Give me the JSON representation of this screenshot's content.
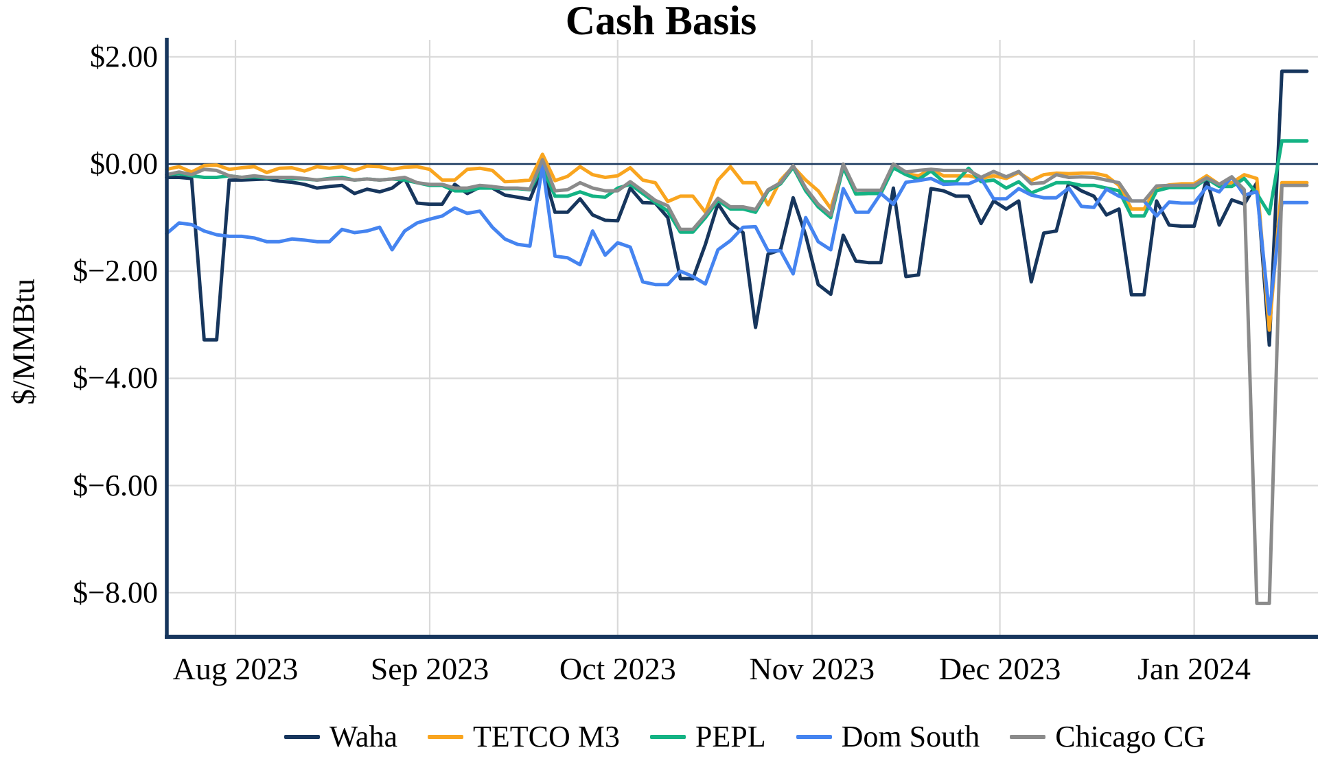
{
  "chart_data": {
    "type": "line",
    "title": "Cash Basis",
    "ylabel": "$/MMBtu",
    "grid": true,
    "legend_position": "bottom",
    "axis_color": "#17365d",
    "grid_color": "#d9d9d9",
    "background": "#ffffff",
    "zero_line": true,
    "ylim": [
      -8.82,
      2.32
    ],
    "yticks": [
      {
        "label": "$2.00",
        "value": 2
      },
      {
        "label": "$0.00",
        "value": 0
      },
      {
        "label": "$−2.00",
        "value": -2
      },
      {
        "label": "$−4.00",
        "value": -4
      },
      {
        "label": "$−6.00",
        "value": -6
      },
      {
        "label": "$−8.00",
        "value": -8
      }
    ],
    "xticks": [
      {
        "label": "Aug 2023",
        "day": 11
      },
      {
        "label": "Sep 2023",
        "day": 42
      },
      {
        "label": "Oct 2023",
        "day": 72
      },
      {
        "label": "Nov 2023",
        "day": 103
      },
      {
        "label": "Dec 2023",
        "day": 133
      },
      {
        "label": "Jan 2024",
        "day": 164
      }
    ],
    "x_dates": [
      "Jul 21",
      "Jul 23",
      "Jul 25",
      "Jul 27",
      "Jul 29",
      "Jul 31",
      "Aug 2",
      "Aug 4",
      "Aug 6",
      "Aug 8",
      "Aug 10",
      "Aug 12",
      "Aug 14",
      "Aug 16",
      "Aug 18",
      "Aug 20",
      "Aug 22",
      "Aug 24",
      "Aug 26",
      "Aug 28",
      "Aug 30",
      "Sep 1",
      "Sep 3",
      "Sep 5",
      "Sep 7",
      "Sep 9",
      "Sep 11",
      "Sep 13",
      "Sep 15",
      "Sep 17",
      "Sep 19",
      "Sep 21",
      "Sep 23",
      "Sep 25",
      "Sep 27",
      "Sep 29",
      "Oct 1",
      "Oct 3",
      "Oct 5",
      "Oct 7",
      "Oct 9",
      "Oct 11",
      "Oct 13",
      "Oct 15",
      "Oct 17",
      "Oct 19",
      "Oct 21",
      "Oct 23",
      "Oct 25",
      "Oct 27",
      "Oct 29",
      "Oct 31",
      "Nov 2",
      "Nov 4",
      "Nov 6",
      "Nov 8",
      "Nov 10",
      "Nov 12",
      "Nov 14",
      "Nov 16",
      "Nov 18",
      "Nov 20",
      "Nov 22",
      "Nov 24",
      "Nov 26",
      "Nov 28",
      "Nov 30",
      "Dec 2",
      "Dec 4",
      "Dec 6",
      "Dec 8",
      "Dec 10",
      "Dec 12",
      "Dec 14",
      "Dec 16",
      "Dec 18",
      "Dec 20",
      "Dec 22",
      "Dec 24",
      "Dec 26",
      "Dec 28",
      "Dec 30",
      "Jan 1",
      "Jan 3",
      "Jan 5",
      "Jan 7",
      "Jan 9",
      "Jan 11",
      "Jan 13",
      "Jan 15",
      "Jan 17",
      "Jan 19"
    ],
    "series": [
      {
        "name": "Waha",
        "color": "#17365d",
        "values": [
          -0.25,
          -0.25,
          -0.27,
          -3.28,
          -3.28,
          -0.3,
          -0.3,
          -0.29,
          -0.28,
          -0.32,
          -0.34,
          -0.38,
          -0.45,
          -0.42,
          -0.4,
          -0.55,
          -0.47,
          -0.52,
          -0.45,
          -0.27,
          -0.73,
          -0.75,
          -0.75,
          -0.38,
          -0.55,
          -0.43,
          -0.45,
          -0.58,
          -0.62,
          -0.66,
          -0.08,
          -0.9,
          -0.9,
          -0.65,
          -0.95,
          -1.05,
          -1.06,
          -0.45,
          -0.72,
          -0.73,
          -1.0,
          -2.14,
          -2.14,
          -1.5,
          -0.74,
          -1.1,
          -1.28,
          -3.05,
          -1.68,
          -1.6,
          -0.63,
          -1.33,
          -2.25,
          -2.43,
          -1.33,
          -1.81,
          -1.84,
          -1.84,
          -0.45,
          -2.1,
          -2.07,
          -0.46,
          -0.5,
          -0.6,
          -0.6,
          -1.11,
          -0.69,
          -0.84,
          -0.69,
          -2.2,
          -1.29,
          -1.25,
          -0.35,
          -0.5,
          -0.6,
          -0.95,
          -0.84,
          -2.44,
          -2.44,
          -0.69,
          -1.14,
          -1.16,
          -1.16,
          -0.27,
          -1.14,
          -0.67,
          -0.75,
          -0.35,
          -3.38,
          1.73,
          1.73,
          1.73
        ]
      },
      {
        "name": "TETCO M3",
        "color": "#f9a51f",
        "values": [
          -0.1,
          -0.05,
          -0.15,
          -0.03,
          -0.02,
          -0.1,
          -0.07,
          -0.05,
          -0.16,
          -0.08,
          -0.07,
          -0.13,
          -0.05,
          -0.08,
          -0.05,
          -0.12,
          -0.04,
          -0.05,
          -0.1,
          -0.06,
          -0.05,
          -0.1,
          -0.3,
          -0.3,
          -0.1,
          -0.08,
          -0.12,
          -0.33,
          -0.32,
          -0.3,
          0.18,
          -0.31,
          -0.23,
          -0.05,
          -0.2,
          -0.25,
          -0.22,
          -0.07,
          -0.3,
          -0.35,
          -0.7,
          -0.6,
          -0.6,
          -0.9,
          -0.3,
          -0.05,
          -0.35,
          -0.35,
          -0.76,
          -0.3,
          -0.05,
          -0.3,
          -0.5,
          -0.83,
          -0.06,
          -0.56,
          -0.55,
          -0.55,
          -0.02,
          -0.18,
          -0.22,
          -0.1,
          -0.22,
          -0.22,
          -0.22,
          -0.27,
          -0.22,
          -0.27,
          -0.16,
          -0.31,
          -0.2,
          -0.17,
          -0.18,
          -0.17,
          -0.17,
          -0.22,
          -0.4,
          -0.84,
          -0.84,
          -0.45,
          -0.39,
          -0.37,
          -0.37,
          -0.22,
          -0.38,
          -0.35,
          -0.2,
          -0.27,
          -3.1,
          -0.35,
          -0.35,
          -0.35
        ]
      },
      {
        "name": "PEPL",
        "color": "#14b384",
        "values": [
          -0.2,
          -0.18,
          -0.22,
          -0.25,
          -0.25,
          -0.22,
          -0.25,
          -0.24,
          -0.26,
          -0.25,
          -0.27,
          -0.28,
          -0.3,
          -0.27,
          -0.25,
          -0.3,
          -0.28,
          -0.3,
          -0.28,
          -0.3,
          -0.35,
          -0.4,
          -0.4,
          -0.5,
          -0.5,
          -0.45,
          -0.45,
          -0.46,
          -0.46,
          -0.48,
          -0.06,
          -0.6,
          -0.6,
          -0.52,
          -0.6,
          -0.62,
          -0.45,
          -0.38,
          -0.55,
          -0.72,
          -0.88,
          -1.27,
          -1.27,
          -1.0,
          -0.68,
          -0.84,
          -0.84,
          -0.9,
          -0.5,
          -0.37,
          -0.06,
          -0.5,
          -0.8,
          -1.0,
          -0.06,
          -0.56,
          -0.55,
          -0.55,
          -0.07,
          -0.2,
          -0.29,
          -0.13,
          -0.33,
          -0.33,
          -0.08,
          -0.33,
          -0.3,
          -0.45,
          -0.33,
          -0.54,
          -0.45,
          -0.35,
          -0.35,
          -0.4,
          -0.4,
          -0.45,
          -0.5,
          -0.97,
          -0.97,
          -0.5,
          -0.44,
          -0.44,
          -0.44,
          -0.27,
          -0.42,
          -0.42,
          -0.27,
          -0.55,
          -0.93,
          0.43,
          0.43,
          0.43
        ]
      },
      {
        "name": "Dom South",
        "color": "#4584f0",
        "values": [
          -1.3,
          -1.1,
          -1.13,
          -1.25,
          -1.32,
          -1.35,
          -1.35,
          -1.38,
          -1.45,
          -1.45,
          -1.4,
          -1.42,
          -1.45,
          -1.45,
          -1.22,
          -1.28,
          -1.25,
          -1.18,
          -1.6,
          -1.25,
          -1.1,
          -1.03,
          -0.97,
          -0.82,
          -0.92,
          -0.88,
          -1.18,
          -1.4,
          -1.5,
          -1.53,
          -0.03,
          -1.72,
          -1.75,
          -1.88,
          -1.25,
          -1.7,
          -1.47,
          -1.55,
          -2.2,
          -2.25,
          -2.25,
          -2.0,
          -2.1,
          -2.24,
          -1.6,
          -1.43,
          -1.18,
          -1.17,
          -1.62,
          -1.62,
          -2.05,
          -1.0,
          -1.45,
          -1.6,
          -0.46,
          -0.9,
          -0.9,
          -0.55,
          -0.75,
          -0.34,
          -0.31,
          -0.27,
          -0.38,
          -0.37,
          -0.37,
          -0.27,
          -0.65,
          -0.65,
          -0.46,
          -0.58,
          -0.63,
          -0.63,
          -0.45,
          -0.79,
          -0.81,
          -0.47,
          -0.6,
          -0.69,
          -0.69,
          -0.97,
          -0.71,
          -0.73,
          -0.73,
          -0.43,
          -0.52,
          -0.24,
          -0.58,
          -0.52,
          -2.8,
          -0.72,
          -0.72,
          -0.72
        ]
      },
      {
        "name": "Chicago CG",
        "color": "#8b8b8b",
        "values": [
          -0.2,
          -0.15,
          -0.2,
          -0.1,
          -0.12,
          -0.22,
          -0.25,
          -0.22,
          -0.25,
          -0.25,
          -0.25,
          -0.27,
          -0.3,
          -0.28,
          -0.27,
          -0.3,
          -0.28,
          -0.3,
          -0.28,
          -0.25,
          -0.35,
          -0.38,
          -0.38,
          -0.45,
          -0.45,
          -0.4,
          -0.42,
          -0.45,
          -0.45,
          -0.47,
          0.08,
          -0.5,
          -0.48,
          -0.35,
          -0.45,
          -0.5,
          -0.5,
          -0.33,
          -0.5,
          -0.68,
          -0.78,
          -1.22,
          -1.22,
          -0.95,
          -0.64,
          -0.8,
          -0.8,
          -0.85,
          -0.48,
          -0.35,
          -0.03,
          -0.45,
          -0.75,
          -0.95,
          0.0,
          -0.49,
          -0.49,
          -0.49,
          0.0,
          -0.15,
          -0.12,
          -0.1,
          -0.12,
          -0.12,
          -0.12,
          -0.25,
          -0.14,
          -0.24,
          -0.14,
          -0.37,
          -0.35,
          -0.2,
          -0.25,
          -0.24,
          -0.25,
          -0.3,
          -0.35,
          -0.69,
          -0.69,
          -0.41,
          -0.4,
          -0.4,
          -0.4,
          -0.26,
          -0.38,
          -0.24,
          -0.48,
          -8.2,
          -8.2,
          -0.4,
          -0.4,
          -0.4
        ]
      }
    ]
  }
}
